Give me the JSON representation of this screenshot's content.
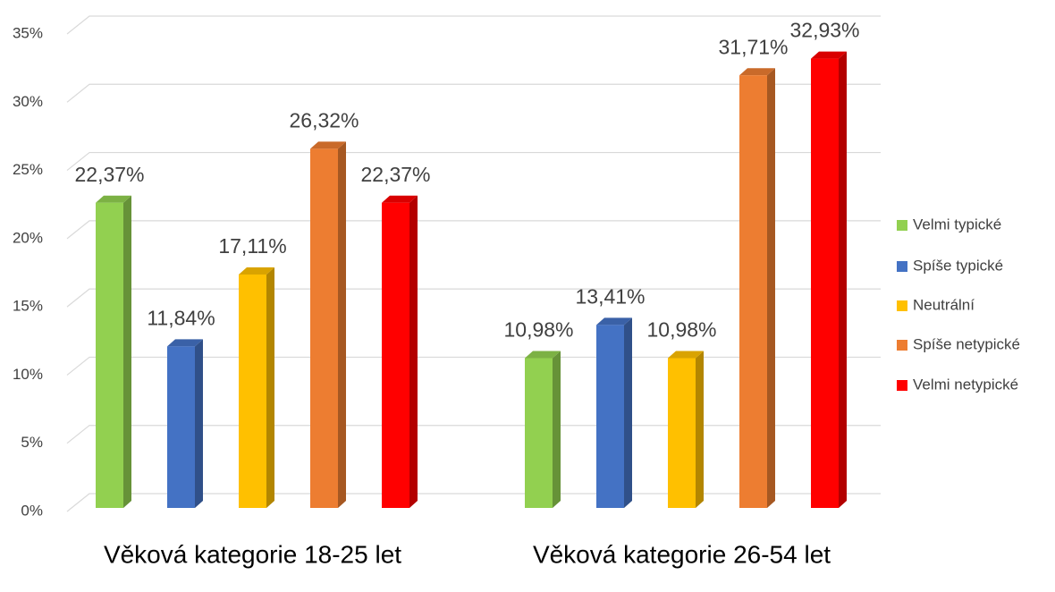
{
  "chart_data": {
    "type": "bar3d",
    "categories": [
      "Věková kategorie 18-25 let",
      "Věková kategorie 26-54 let"
    ],
    "series": [
      {
        "name": "Velmi typické",
        "color": "#92d050",
        "values": [
          22.37,
          10.98
        ],
        "value_labels": [
          "22,37%",
          "10,98%"
        ]
      },
      {
        "name": "Spíše typické",
        "color": "#4472c4",
        "values": [
          11.84,
          13.41
        ],
        "value_labels": [
          "11,84%",
          "13,41%"
        ]
      },
      {
        "name": "Neutrální",
        "color": "#ffc000",
        "values": [
          17.11,
          10.98
        ],
        "value_labels": [
          "17,11%",
          "10,98%"
        ]
      },
      {
        "name": "Spíše netypické",
        "color": "#ed7d31",
        "values": [
          26.32,
          31.71
        ],
        "value_labels": [
          "26,32%",
          "31,71%"
        ]
      },
      {
        "name": "Velmi netypické",
        "color": "#ff0000",
        "values": [
          22.37,
          32.93
        ],
        "value_labels": [
          "22,37%",
          "32,93%"
        ]
      }
    ],
    "ylim": [
      0,
      35
    ],
    "yticks": [
      {
        "value": 0,
        "label": "0%"
      },
      {
        "value": 5,
        "label": "5%"
      },
      {
        "value": 10,
        "label": "10%"
      },
      {
        "value": 15,
        "label": "15%"
      },
      {
        "value": 20,
        "label": "20%"
      },
      {
        "value": 25,
        "label": "25%"
      },
      {
        "value": 30,
        "label": "30%"
      },
      {
        "value": 35,
        "label": "35%"
      }
    ],
    "grid": true,
    "legend": "right"
  }
}
